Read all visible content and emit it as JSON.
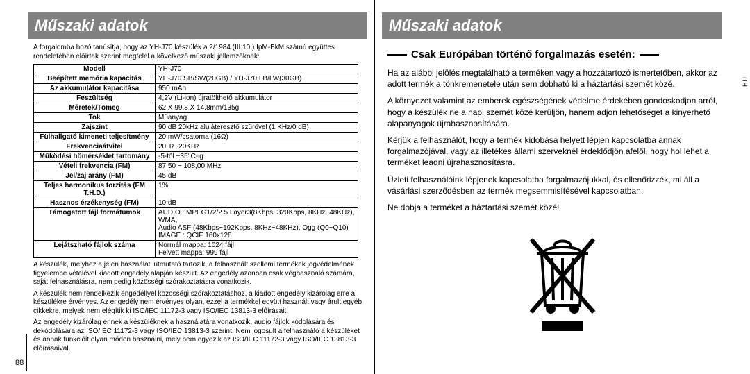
{
  "left": {
    "title": "Műszaki adatok",
    "intro": "A forgalomba hozó tanúsítja, hogy az YH-J70 készülék a 2/1984.(III.10.) IpM-BkM számú együttes rendeletében előírtak szerint megfelel a következő műszaki jellemzőknek:",
    "rows": [
      {
        "label": "Modell",
        "value": "YH-J70"
      },
      {
        "label": "Beépített memória kapacitás",
        "value": "YH-J70 SB/SW(20GB) / YH-J70 LB/LW(30GB)"
      },
      {
        "label": "Az akkumulátor kapacitása",
        "value": "950 mAh"
      },
      {
        "label": "Feszültség",
        "value": "4,2V (Li-ion) újratölthető akkumulátor"
      },
      {
        "label": "Méretek/Tömeg",
        "value": "62 X 99.8 X 14.8mm/135g"
      },
      {
        "label": "Tok",
        "value": "Műanyag"
      },
      {
        "label": "Zajszint",
        "value": "90 dB 20kHz aluláteresztő szűrővel  (1 KHz/0 dB)"
      },
      {
        "label": "Fülhallgató kimeneti teljesítmény",
        "value": "20 mW/csatorna (16Ω)"
      },
      {
        "label": "Frekvenciaátvitel",
        "value": "20Hz~20KHz"
      },
      {
        "label": "Működési hőmérséklet tartomány",
        "value": "-5-től +35°C-ig"
      },
      {
        "label": "Vételi frekvencia (FM)",
        "value": "87,50 ~ 108,00 MHz"
      },
      {
        "label": "Jel/zaj arány (FM)",
        "value": "45 dB"
      },
      {
        "label": "Teljes harmonikus torzítás (FM T.H.D.)",
        "value": "1%"
      },
      {
        "label": "Hasznos érzékenység (FM)",
        "value": "10 dB"
      },
      {
        "label": "Támogatott fájl formátumok",
        "value": "AUDIO : MPEG1/2/2.5 Layer3(8Kbps~320Kbps, 8KHz~48KHz), WMA,\n            Audio ASF (48Kbps~192Kbps, 8KHz~48KHz), Ogg (Q0~Q10)\nIMAGE : QCIF 160x128"
      },
      {
        "label": "Lejátszható fájlok száma",
        "value": "Normál mappa: 1024  fájl\nFelvett mappa: 999 fájl"
      }
    ],
    "foot1": "A készülék, melyhez a jelen használati útmutató tartozik, a felhasznált szellemi termékek jogvédelmének figyelembe vételével kiadott engedély alapján készült. Az engedély azonban csak véghasználó számára, saját felhasználásra, nem pedig közösségi szórakoztatásra vonatkozik.",
    "foot2": "A készülék nem rendelkezik engedéllyel közösségi szórakoztatáshoz, a kiadott engedély kizárólag erre a készülékre érvényes. Az engedély nem érvényes olyan, ezzel a termékkel együtt használt vagy árult egyéb cikkekre, melyek nem elégítik ki ISO/IEC 11172-3 vagy ISO/IEC 13813-3 előírásait.",
    "foot3": "Az engedély kizárólag ennek a készüléknek a használatára vonatkozik, audio fájlok kódolására és dekódolására az ISO/IEC 11172-3 vagy ISO/IEC 13813-3 szerint. Nem jogosult a felhasználó a készüléket és annak funkcióit olyan módon használni, mely nem egyezik az ISO/IEC 11172-3 vagy ISO/IEC 13813-3 előírásaival.",
    "pagenum": "88"
  },
  "right": {
    "title": "Műszaki adatok",
    "subhead": "Csak Európában történő forgalmazás esetén:",
    "p1": "Ha az alábbi jelölés megtalálható a terméken vagy a hozzátartozó ismertetőben, akkor az adott termék a tönkremenetele után sem dobható ki a háztartási szemét közé.",
    "p2": "A környezet valamint az emberek egészségének védelme érdekében gondoskodjon arról, hogy a készülék ne a napi szemét közé kerüljön, hanem adjon lehetőséget a kinyerhető alapanyagok újrahasznosítására.",
    "p3": "Kérjük a felhasználót, hogy a termék kidobása helyett lépjen kapcsolatba annak forgalmazójával, vagy az illetékes állami szerveknél érdeklődjön afelől, hogy hol lehet a terméket leadni újrahasznosításra.",
    "p4": "Üzleti felhasználóink lépjenek kapcsolatba forgalmazójukkal, és ellenőrizzék, mi áll a vásárlási szerződésben az termék megsemmisítésével kapcsolatban.",
    "p5": "Ne dobja a terméket a háztartási szemét közé!",
    "lang": "HU"
  },
  "colors": {
    "titlebar_bg": "#808080",
    "titlebar_fg": "#ffffff",
    "border": "#000000",
    "text": "#000000"
  }
}
